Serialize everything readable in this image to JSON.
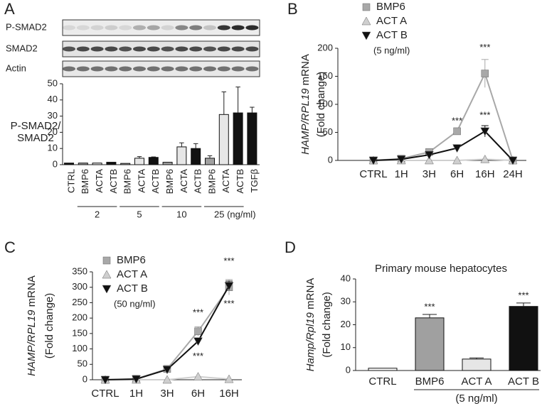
{
  "panels": [
    "A",
    "B",
    "C",
    "D"
  ],
  "blot": {
    "rows": [
      "P-SMAD2",
      "SMAD2",
      "Actin"
    ]
  },
  "chart_data": [
    {
      "type": "bar",
      "ylabel": [
        "P-SMAD2/",
        "SMAD2"
      ],
      "categories": [
        "CTRL",
        "BMP6",
        "ACTA",
        "ACTB",
        "BMP6",
        "ACTA",
        "ACTB",
        "BMP6",
        "ACTA",
        "ACTB",
        "BMP6",
        "ACTA",
        "ACTB",
        "TGFβ"
      ],
      "values": [
        1,
        1,
        1,
        1.5,
        0.8,
        4,
        4.5,
        1.5,
        11,
        10,
        4,
        31,
        32,
        32
      ],
      "errors": [
        null,
        null,
        null,
        null,
        null,
        1,
        0.3,
        null,
        2.5,
        3,
        1.5,
        14,
        16,
        3.5
      ],
      "colors": [
        "#111111",
        "#a0a0a0",
        "#e6e6e6",
        "#111111",
        "#a0a0a0",
        "#e6e6e6",
        "#111111",
        "#a0a0a0",
        "#e6e6e6",
        "#111111",
        "#a0a0a0",
        "#e6e6e6",
        "#111111",
        "#111111"
      ],
      "ylim": [
        0,
        50
      ],
      "yticks": [
        0,
        10,
        20,
        30,
        40,
        50
      ],
      "groups": [
        "2",
        "5",
        "10",
        "25 (ng/ml)"
      ]
    },
    {
      "type": "line",
      "ylabel": {
        "italic": "HAMP/RPL19",
        "text": "mRNA",
        "line2": "(Fold change)"
      },
      "categories": [
        "CTRL",
        "1H",
        "3H",
        "6H",
        "16H",
        "24H"
      ],
      "series": [
        {
          "name": "BMP6",
          "color": "#a8a8a8",
          "marker": "square",
          "values": [
            0,
            3,
            15,
            52,
            155,
            0
          ],
          "errors": [
            null,
            null,
            3,
            4,
            25,
            null
          ]
        },
        {
          "name": "ACT A",
          "color": "#cfcfcf",
          "marker": "triangle-up",
          "values": [
            0,
            0,
            0,
            0,
            2,
            0
          ],
          "errors": [
            null,
            null,
            null,
            null,
            null,
            null
          ]
        },
        {
          "name": "ACT B",
          "color": "#111111",
          "marker": "triangle-down",
          "values": [
            0,
            2,
            10,
            22,
            52,
            0
          ],
          "errors": [
            null,
            null,
            2,
            3,
            10,
            null
          ]
        }
      ],
      "legend_note": "(5 ng/ml)",
      "annotations": [
        "***",
        "***",
        "***"
      ],
      "ylim": [
        0,
        200
      ],
      "yticks": [
        0,
        50,
        100,
        150,
        200
      ]
    },
    {
      "type": "line",
      "ylabel": {
        "italic": "HAMP/RPL19",
        "text": "mRNA",
        "line2": "(Fold change)"
      },
      "categories": [
        "CTRL",
        "1H",
        "3H",
        "6H",
        "16H"
      ],
      "series": [
        {
          "name": "BMP6",
          "color": "#a8a8a8",
          "marker": "square",
          "values": [
            0,
            3,
            35,
            157,
            300
          ],
          "errors": [
            null,
            null,
            5,
            15,
            25
          ]
        },
        {
          "name": "ACT A",
          "color": "#cfcfcf",
          "marker": "triangle-up",
          "values": [
            0,
            0,
            0,
            10,
            2
          ],
          "errors": [
            null,
            null,
            null,
            null,
            null
          ]
        },
        {
          "name": "ACT B",
          "color": "#111111",
          "marker": "triangle-down",
          "values": [
            0,
            2,
            33,
            125,
            305
          ],
          "errors": [
            null,
            null,
            5,
            10,
            15
          ]
        }
      ],
      "legend_note": "(50 ng/ml)",
      "annotations": [
        "***",
        "***",
        "***",
        "***"
      ],
      "ylim": [
        0,
        350
      ],
      "yticks": [
        0,
        50,
        100,
        150,
        200,
        250,
        300,
        350
      ]
    },
    {
      "type": "bar",
      "title": "Primary mouse hepatocytes",
      "ylabel": {
        "italic": "Hamp/Rpl19",
        "text": "mRNA",
        "line2": "(Fold change)"
      },
      "categories": [
        "CTRL",
        "BMP6",
        "ACT A",
        "ACT B"
      ],
      "values": [
        1,
        23,
        5,
        28
      ],
      "errors": [
        null,
        1.5,
        0.5,
        1.5
      ],
      "colors": [
        "#ffffff",
        "#a0a0a0",
        "#e6e6e6",
        "#111111"
      ],
      "note": "(5 ng/ml)",
      "annotations": [
        "***",
        "***"
      ],
      "ylim": [
        0,
        40
      ],
      "yticks": [
        0,
        10,
        20,
        30,
        40
      ]
    }
  ]
}
